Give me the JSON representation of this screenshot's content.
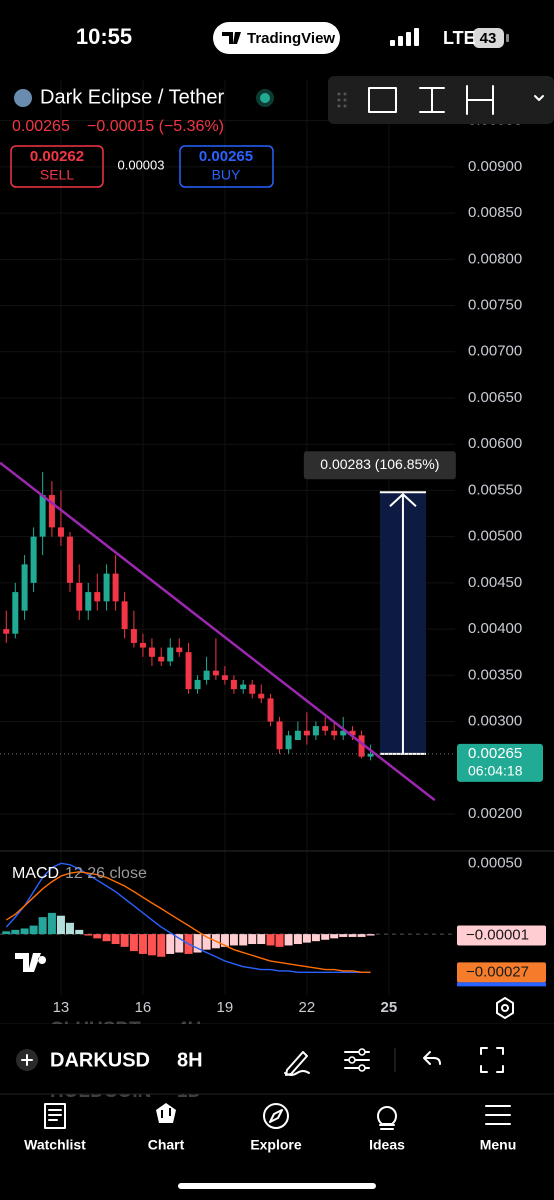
{
  "status_bar": {
    "time": "10:55",
    "app": "TradingView",
    "network": "LTE",
    "battery": "43"
  },
  "header": {
    "name": "Dark Eclipse / Tether",
    "price": "0.00265",
    "change": "−0.00015 (−5.36%)",
    "sell_price": "0.00262",
    "sell": "SELL",
    "spread": "0.00003",
    "buy_price": "0.00265",
    "buy": "BUY"
  },
  "chart_data": {
    "type": "candlestick",
    "x": [
      11,
      11.33,
      11.67,
      12,
      12.33,
      12.67,
      13,
      13.33,
      13.67,
      14,
      14.33,
      14.67,
      15,
      15.33,
      15.67,
      16,
      16.33,
      16.67,
      17,
      17.33,
      17.67,
      18,
      18.33,
      18.67,
      19,
      19.33,
      19.67,
      20,
      20.33,
      20.67,
      21,
      21.33,
      21.67,
      22,
      22.33,
      22.67,
      23,
      23.33,
      23.67,
      24,
      24.33
    ],
    "open": [
      0.004,
      0.00395,
      0.0042,
      0.0045,
      0.005,
      0.00545,
      0.0051,
      0.005,
      0.0045,
      0.0042,
      0.0044,
      0.0043,
      0.0046,
      0.0043,
      0.004,
      0.00385,
      0.0038,
      0.0037,
      0.00365,
      0.0038,
      0.00375,
      0.00335,
      0.00345,
      0.00355,
      0.0035,
      0.00345,
      0.00335,
      0.0034,
      0.0033,
      0.00325,
      0.003,
      0.0027,
      0.0028,
      0.0029,
      0.00285,
      0.00295,
      0.0029,
      0.00285,
      0.0029,
      0.00285,
      0.00262
    ],
    "high": [
      0.0042,
      0.0045,
      0.0048,
      0.0051,
      0.0057,
      0.0056,
      0.0055,
      0.00505,
      0.0047,
      0.0045,
      0.0046,
      0.0047,
      0.0048,
      0.0044,
      0.0042,
      0.00395,
      0.0039,
      0.0038,
      0.0039,
      0.0039,
      0.00385,
      0.0035,
      0.0037,
      0.0039,
      0.0036,
      0.0035,
      0.00345,
      0.00345,
      0.0034,
      0.0033,
      0.00305,
      0.0029,
      0.003,
      0.0031,
      0.003,
      0.00305,
      0.003,
      0.00305,
      0.00295,
      0.0029,
      0.00275
    ],
    "low": [
      0.00385,
      0.0039,
      0.0041,
      0.0044,
      0.0048,
      0.005,
      0.0049,
      0.0044,
      0.0041,
      0.0041,
      0.0042,
      0.0042,
      0.0042,
      0.0039,
      0.0038,
      0.0037,
      0.0036,
      0.0036,
      0.0036,
      0.0037,
      0.0033,
      0.0033,
      0.0034,
      0.00345,
      0.0034,
      0.0033,
      0.0033,
      0.00325,
      0.0032,
      0.00295,
      0.00265,
      0.00265,
      0.0028,
      0.00275,
      0.0028,
      0.00285,
      0.0028,
      0.0028,
      0.0028,
      0.0026,
      0.00258
    ],
    "close": [
      0.00395,
      0.0044,
      0.0047,
      0.005,
      0.00545,
      0.0051,
      0.005,
      0.0045,
      0.0042,
      0.0044,
      0.0043,
      0.0046,
      0.0043,
      0.004,
      0.00385,
      0.0038,
      0.0037,
      0.00365,
      0.0038,
      0.00375,
      0.00335,
      0.00345,
      0.00355,
      0.0035,
      0.00345,
      0.00335,
      0.0034,
      0.0033,
      0.00325,
      0.003,
      0.0027,
      0.00285,
      0.0029,
      0.00285,
      0.00295,
      0.0029,
      0.00285,
      0.0029,
      0.00285,
      0.00262,
      0.00265
    ],
    "up_color": "#22ab94",
    "down_color": "#f23645",
    "xlim": [
      10.77,
      27.42
    ],
    "xticks": [
      13,
      16,
      19,
      22,
      25
    ],
    "ylim": [
      0.00161,
      0.00994
    ],
    "yticks": [
      {
        "value": 0.0095,
        "label": "0.00950"
      },
      {
        "value": 0.009,
        "label": "0.00900"
      },
      {
        "value": 0.0085,
        "label": "0.00850"
      },
      {
        "value": 0.008,
        "label": "0.00800"
      },
      {
        "value": 0.0075,
        "label": "0.00750"
      },
      {
        "value": 0.007,
        "label": "0.00700"
      },
      {
        "value": 0.0065,
        "label": "0.00650"
      },
      {
        "value": 0.006,
        "label": "0.00600"
      },
      {
        "value": 0.0055,
        "label": "0.00550"
      },
      {
        "value": 0.005,
        "label": "0.00500"
      },
      {
        "value": 0.0045,
        "label": "0.00450"
      },
      {
        "value": 0.004,
        "label": "0.00400"
      },
      {
        "value": 0.0035,
        "label": "0.00350"
      },
      {
        "value": 0.003,
        "label": "0.00300"
      },
      {
        "value": 0.002,
        "label": "0.00200"
      }
    ],
    "grid": true,
    "last_price": {
      "value": 0.00265,
      "label": "0.00265",
      "countdown": "06:04:18",
      "color": "#22ab94"
    },
    "measure": {
      "from": 0.00265,
      "to": 0.00548,
      "x_range": [
        24.67,
        26.36
      ],
      "label": "0.00283 (106.85%)"
    },
    "trend_line": {
      "x": [
        10.77,
        26.68
      ],
      "y": [
        0.0058,
        0.00215
      ],
      "color": "#9c27b0"
    },
    "macd": {
      "title": "MACD",
      "params": "12 26 close",
      "ylim": [
        -0.00043,
        0.00058
      ],
      "yticks": [
        {
          "value": 0.0005,
          "label": "0.00050"
        }
      ],
      "histogram": [
        2e-05,
        3e-05,
        4e-05,
        6e-05,
        0.00012,
        0.00015,
        0.00013,
        8e-05,
        3e-05,
        -1e-05,
        -3e-05,
        -5e-05,
        -7e-05,
        -9e-05,
        -0.00012,
        -0.00014,
        -0.00015,
        -0.00016,
        -0.00014,
        -0.00013,
        -0.00014,
        -0.00013,
        -0.00011,
        -0.0001,
        -9e-05,
        -8e-05,
        -8e-05,
        -7e-05,
        -7e-05,
        -8e-05,
        -9e-05,
        -8e-05,
        -7e-05,
        -6e-05,
        -5e-05,
        -4e-05,
        -3e-05,
        -2e-05,
        -2e-05,
        -2e-05,
        -1e-05
      ],
      "macd_line": [
        5e-05,
        0.00012,
        0.0002,
        0.0003,
        0.0004,
        0.00047,
        0.0005,
        0.00049,
        0.00046,
        0.00042,
        0.00038,
        0.00034,
        0.0003,
        0.00025,
        0.0002,
        0.00015,
        0.0001,
        5e-05,
        1e-05,
        -3e-05,
        -7e-05,
        -0.0001,
        -0.00013,
        -0.00016,
        -0.00019,
        -0.00021,
        -0.00023,
        -0.00024,
        -0.00025,
        -0.00025,
        -0.00026,
        -0.00026,
        -0.00027,
        -0.00027,
        -0.00027,
        -0.00027,
        -0.00027,
        -0.00027,
        -0.00027,
        -0.00027,
        -0.00027
      ],
      "signal_line": [
        0.0001,
        0.00014,
        0.0002,
        0.00026,
        0.00032,
        0.00037,
        0.00041,
        0.00043,
        0.00044,
        0.00043,
        0.00042,
        0.0004,
        0.00037,
        0.00034,
        0.0003,
        0.00026,
        0.00022,
        0.00018,
        0.00014,
        0.0001,
        6e-05,
        2e-05,
        -2e-05,
        -5e-05,
        -8e-05,
        -0.00011,
        -0.00013,
        -0.00015,
        -0.00017,
        -0.00019,
        -0.0002,
        -0.00021,
        -0.00022,
        -0.00023,
        -0.00024,
        -0.00025,
        -0.00025,
        -0.00026,
        -0.00026,
        -0.00027,
        -0.00027
      ],
      "colors": {
        "macd_line": "#2962ff",
        "signal_line": "#ff6d00",
        "up_rising": "#26a69a",
        "up_falling": "#b2dfdb",
        "down_falling": "#ff5252",
        "down_rising": "#ffcdd2"
      },
      "markers": [
        {
          "value": -1e-05,
          "label": "−0.00001",
          "color": "#ffcdd2"
        },
        {
          "value": -0.00027,
          "label": "−0.00027",
          "color": "#f57c2a"
        }
      ]
    }
  },
  "toolbar": {
    "symbol": "DARKUSD",
    "interval": "8H",
    "prev_symbol": "CLHUSDT",
    "prev_interval": "4H",
    "next_symbol": "HOLDCOIN",
    "next_interval": "1D"
  },
  "tabs": [
    "Watchlist",
    "Chart",
    "Explore",
    "Ideas",
    "Menu"
  ]
}
